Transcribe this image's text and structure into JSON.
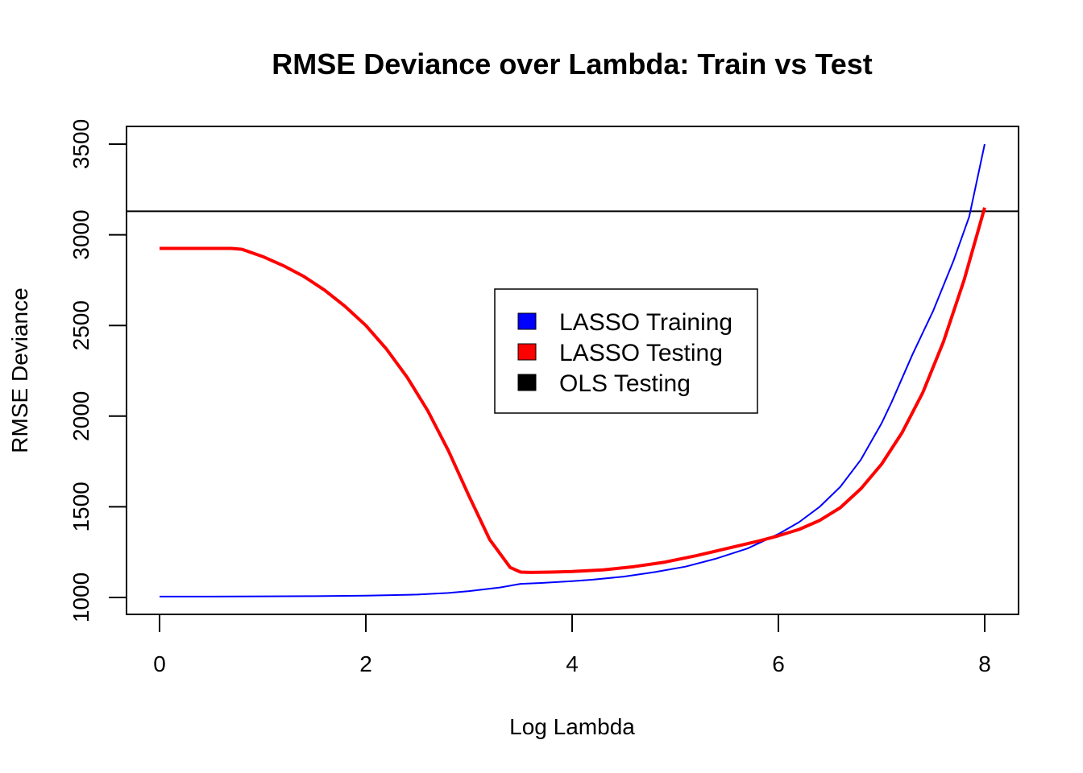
{
  "chart_data": {
    "type": "line",
    "title": "RMSE Deviance over Lambda: Train vs Test",
    "xlabel": "Log Lambda",
    "ylabel": "RMSE Deviance",
    "xlim": [
      0,
      8
    ],
    "ylim": [
      1000,
      3500
    ],
    "xticks": [
      0,
      2,
      4,
      6,
      8
    ],
    "yticks": [
      1000,
      1500,
      2000,
      2500,
      3000,
      3500
    ],
    "legend_position": "center",
    "grid": false,
    "series": [
      {
        "name": "LASSO Training",
        "color": "#0000FF",
        "x": [
          0,
          0.5,
          1,
          1.5,
          2,
          2.5,
          2.8,
          3.0,
          3.3,
          3.5,
          3.7,
          4.0,
          4.2,
          4.5,
          4.8,
          5.1,
          5.4,
          5.7,
          6.0,
          6.2,
          6.4,
          6.6,
          6.8,
          7.0,
          7.1,
          7.3,
          7.5,
          7.7,
          7.85,
          8.0
        ],
        "values": [
          1005,
          1005,
          1006,
          1007,
          1010,
          1016,
          1025,
          1035,
          1055,
          1075,
          1080,
          1090,
          1098,
          1115,
          1140,
          1170,
          1215,
          1270,
          1350,
          1415,
          1500,
          1610,
          1760,
          1960,
          2080,
          2340,
          2580,
          2860,
          3100,
          3500
        ]
      },
      {
        "name": "LASSO Testing",
        "color": "#FF0000",
        "x": [
          0,
          0.3,
          0.5,
          0.7,
          0.8,
          0.9,
          1.0,
          1.2,
          1.4,
          1.6,
          1.8,
          2.0,
          2.2,
          2.4,
          2.6,
          2.8,
          3.0,
          3.2,
          3.4,
          3.5,
          3.6,
          3.8,
          4.0,
          4.3,
          4.6,
          4.9,
          5.2,
          5.5,
          5.8,
          6.0,
          6.2,
          6.4,
          6.6,
          6.8,
          7.0,
          7.2,
          7.4,
          7.6,
          7.8,
          8.0
        ],
        "values": [
          2925,
          2925,
          2925,
          2925,
          2920,
          2900,
          2880,
          2830,
          2770,
          2695,
          2605,
          2500,
          2370,
          2215,
          2030,
          1810,
          1560,
          1320,
          1165,
          1140,
          1138,
          1140,
          1143,
          1152,
          1170,
          1195,
          1230,
          1270,
          1310,
          1340,
          1375,
          1425,
          1495,
          1600,
          1735,
          1910,
          2130,
          2410,
          2750,
          3150
        ]
      }
    ],
    "reference_lines": [
      {
        "name": "OLS Testing",
        "orientation": "horizontal",
        "value": 3130,
        "color": "#000000"
      }
    ],
    "legend": {
      "entries": [
        {
          "label": "LASSO Training",
          "color": "#0000FF"
        },
        {
          "label": "LASSO Testing",
          "color": "#FF0000"
        },
        {
          "label": "OLS Testing",
          "color": "#000000"
        }
      ]
    }
  }
}
